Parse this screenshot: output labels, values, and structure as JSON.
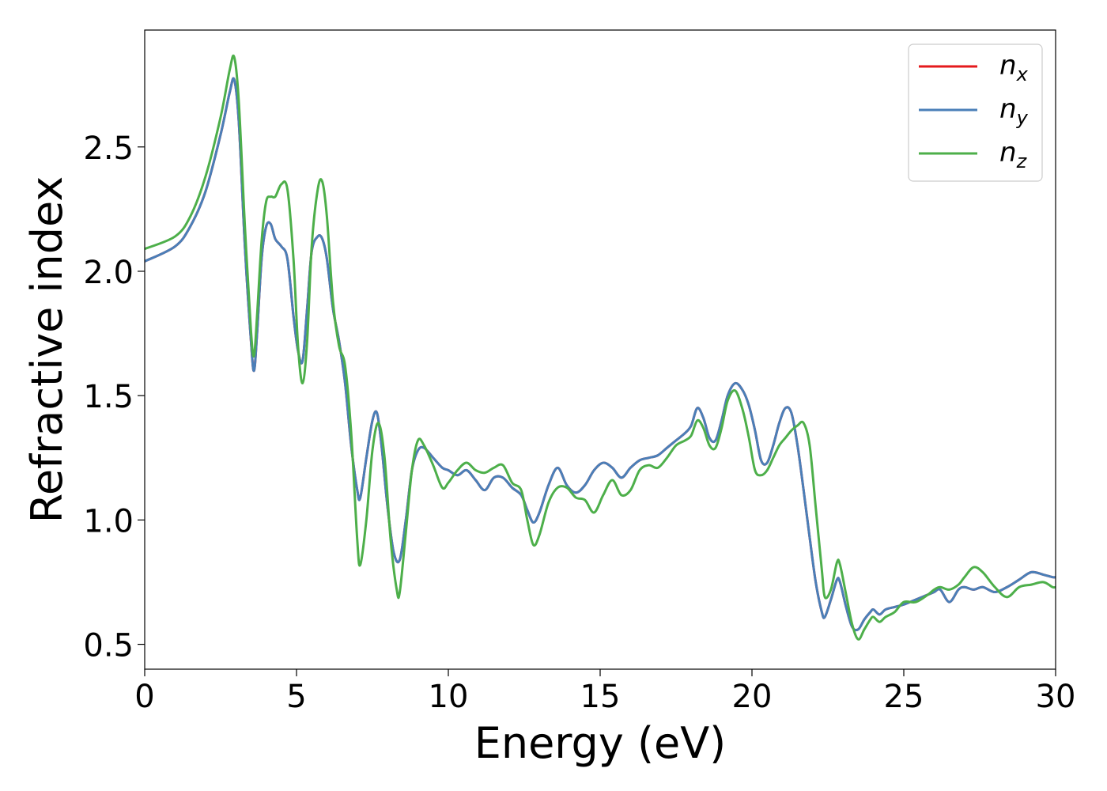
{
  "chart_data": {
    "type": "line",
    "title": "",
    "xlabel": "Energy (eV)",
    "ylabel": "Refractive index",
    "xlim": [
      0,
      30
    ],
    "ylim": [
      0.4,
      2.97
    ],
    "xticks": [
      0,
      5,
      10,
      15,
      20,
      25,
      30
    ],
    "xtick_labels": [
      "0",
      "5",
      "10",
      "15",
      "20",
      "25",
      "30"
    ],
    "yticks": [
      0.5,
      1.0,
      1.5,
      2.0,
      2.5
    ],
    "ytick_labels": [
      "0.5",
      "1.0",
      "1.5",
      "2.0",
      "2.5"
    ],
    "grid": false,
    "legend_position": "top-right",
    "series": [
      {
        "name": "n_x",
        "legend_main": "n",
        "legend_sub": "x",
        "color": "#e41a1c",
        "x": [
          0,
          1,
          1.5,
          2,
          2.5,
          2.8,
          2.95,
          3.1,
          3.3,
          3.5,
          3.6,
          3.7,
          3.85,
          4.0,
          4.15,
          4.3,
          4.5,
          4.7,
          4.9,
          5.05,
          5.2,
          5.35,
          5.5,
          5.7,
          5.85,
          6.0,
          6.2,
          6.4,
          6.6,
          6.8,
          7.0,
          7.1,
          7.3,
          7.5,
          7.65,
          7.8,
          8.0,
          8.2,
          8.4,
          8.6,
          8.8,
          9.0,
          9.2,
          9.5,
          9.8,
          10.0,
          10.3,
          10.6,
          10.9,
          11.2,
          11.5,
          11.8,
          12.1,
          12.4,
          12.6,
          12.8,
          13.0,
          13.3,
          13.6,
          13.9,
          14.2,
          14.5,
          14.8,
          15.1,
          15.4,
          15.7,
          16.0,
          16.3,
          16.6,
          16.9,
          17.2,
          17.5,
          17.8,
          18.0,
          18.2,
          18.4,
          18.6,
          18.8,
          19.0,
          19.2,
          19.45,
          19.7,
          19.9,
          20.1,
          20.3,
          20.5,
          20.7,
          20.9,
          21.1,
          21.3,
          21.5,
          21.7,
          21.9,
          22.1,
          22.3,
          22.4,
          22.6,
          22.8,
          22.9,
          23.1,
          23.3,
          23.5,
          23.7,
          23.9,
          24.0,
          24.2,
          24.4,
          24.7,
          25.0,
          25.4,
          25.8,
          26.0,
          26.2,
          26.5,
          26.8,
          27.0,
          27.3,
          27.6,
          28.0,
          28.4,
          28.8,
          29.2,
          29.6,
          29.9,
          30.0
        ],
        "y": [
          2.04,
          2.1,
          2.18,
          2.32,
          2.55,
          2.72,
          2.77,
          2.6,
          2.1,
          1.72,
          1.6,
          1.75,
          2.05,
          2.18,
          2.19,
          2.13,
          2.1,
          2.05,
          1.82,
          1.68,
          1.64,
          1.85,
          2.08,
          2.14,
          2.13,
          2.05,
          1.85,
          1.72,
          1.55,
          1.3,
          1.12,
          1.09,
          1.25,
          1.4,
          1.43,
          1.3,
          1.05,
          0.87,
          0.84,
          1.0,
          1.2,
          1.28,
          1.29,
          1.25,
          1.21,
          1.2,
          1.18,
          1.2,
          1.16,
          1.12,
          1.17,
          1.17,
          1.13,
          1.1,
          1.04,
          0.99,
          1.03,
          1.14,
          1.21,
          1.14,
          1.11,
          1.14,
          1.2,
          1.23,
          1.21,
          1.17,
          1.21,
          1.24,
          1.25,
          1.26,
          1.29,
          1.32,
          1.35,
          1.38,
          1.45,
          1.41,
          1.33,
          1.32,
          1.4,
          1.5,
          1.55,
          1.52,
          1.46,
          1.36,
          1.24,
          1.23,
          1.3,
          1.39,
          1.45,
          1.43,
          1.3,
          1.12,
          0.93,
          0.75,
          0.63,
          0.61,
          0.68,
          0.76,
          0.75,
          0.65,
          0.57,
          0.56,
          0.6,
          0.63,
          0.64,
          0.62,
          0.64,
          0.65,
          0.66,
          0.68,
          0.7,
          0.71,
          0.72,
          0.67,
          0.72,
          0.73,
          0.72,
          0.73,
          0.71,
          0.73,
          0.76,
          0.79,
          0.78,
          0.77,
          0.77
        ]
      },
      {
        "name": "n_y",
        "legend_main": "n",
        "legend_sub": "y",
        "color": "#4a7fb8",
        "x": [
          0,
          1,
          1.5,
          2,
          2.5,
          2.8,
          2.95,
          3.1,
          3.3,
          3.5,
          3.6,
          3.7,
          3.85,
          4.0,
          4.15,
          4.3,
          4.5,
          4.7,
          4.9,
          5.05,
          5.2,
          5.35,
          5.5,
          5.7,
          5.85,
          6.0,
          6.2,
          6.4,
          6.6,
          6.8,
          7.0,
          7.1,
          7.3,
          7.5,
          7.65,
          7.8,
          8.0,
          8.2,
          8.4,
          8.6,
          8.8,
          9.0,
          9.2,
          9.5,
          9.8,
          10.0,
          10.3,
          10.6,
          10.9,
          11.2,
          11.5,
          11.8,
          12.1,
          12.4,
          12.6,
          12.8,
          13.0,
          13.3,
          13.6,
          13.9,
          14.2,
          14.5,
          14.8,
          15.1,
          15.4,
          15.7,
          16.0,
          16.3,
          16.6,
          16.9,
          17.2,
          17.5,
          17.8,
          18.0,
          18.2,
          18.4,
          18.6,
          18.8,
          19.0,
          19.2,
          19.45,
          19.7,
          19.9,
          20.1,
          20.3,
          20.5,
          20.7,
          20.9,
          21.1,
          21.3,
          21.5,
          21.7,
          21.9,
          22.1,
          22.3,
          22.4,
          22.6,
          22.8,
          22.9,
          23.1,
          23.3,
          23.5,
          23.7,
          23.9,
          24.0,
          24.2,
          24.4,
          24.7,
          25.0,
          25.4,
          25.8,
          26.0,
          26.2,
          26.5,
          26.8,
          27.0,
          27.3,
          27.6,
          28.0,
          28.4,
          28.8,
          29.2,
          29.6,
          29.9,
          30.0
        ],
        "y": [
          2.04,
          2.1,
          2.18,
          2.32,
          2.55,
          2.72,
          2.77,
          2.6,
          2.1,
          1.72,
          1.6,
          1.75,
          2.05,
          2.18,
          2.19,
          2.13,
          2.1,
          2.05,
          1.82,
          1.68,
          1.64,
          1.85,
          2.08,
          2.14,
          2.13,
          2.05,
          1.85,
          1.72,
          1.55,
          1.3,
          1.12,
          1.09,
          1.25,
          1.4,
          1.43,
          1.3,
          1.05,
          0.87,
          0.84,
          1.0,
          1.2,
          1.28,
          1.29,
          1.25,
          1.21,
          1.2,
          1.18,
          1.2,
          1.16,
          1.12,
          1.17,
          1.17,
          1.13,
          1.1,
          1.04,
          0.99,
          1.03,
          1.14,
          1.21,
          1.14,
          1.11,
          1.14,
          1.2,
          1.23,
          1.21,
          1.17,
          1.21,
          1.24,
          1.25,
          1.26,
          1.29,
          1.32,
          1.35,
          1.38,
          1.45,
          1.41,
          1.33,
          1.32,
          1.4,
          1.5,
          1.55,
          1.52,
          1.46,
          1.36,
          1.24,
          1.23,
          1.3,
          1.39,
          1.45,
          1.43,
          1.3,
          1.12,
          0.93,
          0.75,
          0.63,
          0.61,
          0.68,
          0.76,
          0.75,
          0.65,
          0.57,
          0.56,
          0.6,
          0.63,
          0.64,
          0.62,
          0.64,
          0.65,
          0.66,
          0.68,
          0.7,
          0.71,
          0.72,
          0.67,
          0.72,
          0.73,
          0.72,
          0.73,
          0.71,
          0.73,
          0.76,
          0.79,
          0.78,
          0.77,
          0.77
        ]
      },
      {
        "name": "n_z",
        "legend_main": "n",
        "legend_sub": "z",
        "color": "#4daf4a",
        "x": [
          0,
          1,
          1.5,
          2,
          2.5,
          2.8,
          2.95,
          3.1,
          3.3,
          3.5,
          3.6,
          3.7,
          3.85,
          4.0,
          4.15,
          4.3,
          4.5,
          4.7,
          4.9,
          5.05,
          5.2,
          5.35,
          5.5,
          5.7,
          5.85,
          6.0,
          6.2,
          6.4,
          6.6,
          6.8,
          7.0,
          7.1,
          7.3,
          7.5,
          7.7,
          7.9,
          8.1,
          8.3,
          8.4,
          8.6,
          8.8,
          9.0,
          9.2,
          9.5,
          9.8,
          10.0,
          10.3,
          10.6,
          10.9,
          11.2,
          11.5,
          11.8,
          12.1,
          12.4,
          12.6,
          12.8,
          13.0,
          13.3,
          13.6,
          13.9,
          14.2,
          14.5,
          14.8,
          15.1,
          15.4,
          15.7,
          16.0,
          16.3,
          16.6,
          16.9,
          17.2,
          17.5,
          17.8,
          18.0,
          18.2,
          18.4,
          18.6,
          18.8,
          19.0,
          19.2,
          19.45,
          19.7,
          19.9,
          20.1,
          20.3,
          20.5,
          20.7,
          20.9,
          21.1,
          21.3,
          21.5,
          21.7,
          21.9,
          22.1,
          22.3,
          22.4,
          22.6,
          22.8,
          22.9,
          23.1,
          23.3,
          23.5,
          23.7,
          23.9,
          24.0,
          24.2,
          24.4,
          24.7,
          25.0,
          25.4,
          25.8,
          26.0,
          26.2,
          26.5,
          26.8,
          27.0,
          27.3,
          27.6,
          28.0,
          28.4,
          28.8,
          29.2,
          29.6,
          29.9,
          30.0
        ],
        "y": [
          2.09,
          2.14,
          2.22,
          2.38,
          2.62,
          2.81,
          2.86,
          2.68,
          2.18,
          1.76,
          1.66,
          1.82,
          2.12,
          2.28,
          2.3,
          2.3,
          2.35,
          2.33,
          2.05,
          1.7,
          1.55,
          1.72,
          2.1,
          2.33,
          2.36,
          2.22,
          1.88,
          1.7,
          1.62,
          1.35,
          0.92,
          0.82,
          1.0,
          1.28,
          1.39,
          1.25,
          0.92,
          0.72,
          0.71,
          0.95,
          1.2,
          1.32,
          1.3,
          1.22,
          1.13,
          1.15,
          1.2,
          1.23,
          1.2,
          1.19,
          1.21,
          1.22,
          1.15,
          1.12,
          1.0,
          0.9,
          0.94,
          1.07,
          1.13,
          1.13,
          1.09,
          1.08,
          1.03,
          1.1,
          1.16,
          1.1,
          1.12,
          1.2,
          1.22,
          1.21,
          1.25,
          1.3,
          1.32,
          1.34,
          1.4,
          1.37,
          1.3,
          1.29,
          1.37,
          1.48,
          1.52,
          1.44,
          1.33,
          1.2,
          1.18,
          1.2,
          1.25,
          1.3,
          1.33,
          1.36,
          1.38,
          1.39,
          1.3,
          1.05,
          0.8,
          0.69,
          0.72,
          0.83,
          0.82,
          0.7,
          0.58,
          0.52,
          0.56,
          0.6,
          0.61,
          0.59,
          0.61,
          0.63,
          0.67,
          0.67,
          0.7,
          0.72,
          0.73,
          0.72,
          0.74,
          0.77,
          0.81,
          0.79,
          0.73,
          0.69,
          0.73,
          0.74,
          0.75,
          0.73,
          0.73
        ]
      }
    ]
  }
}
